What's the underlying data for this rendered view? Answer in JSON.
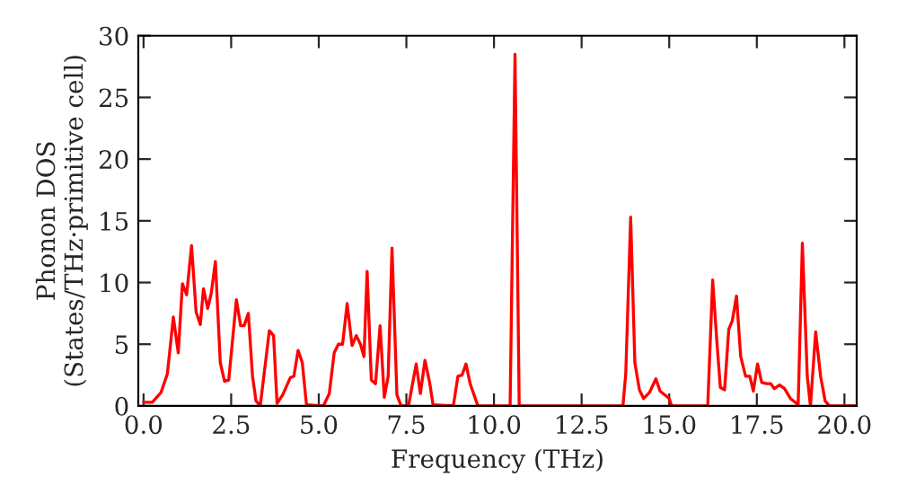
{
  "chart_data": {
    "type": "line",
    "xlabel": "Frequency (THz)",
    "ylabel": "Phonon DOS\n(States/THz·primitive cell)",
    "x": [
      0,
      0.25,
      0.5,
      0.68,
      0.85,
      0.99,
      1.11,
      1.23,
      1.37,
      1.5,
      1.62,
      1.71,
      1.83,
      1.93,
      2.05,
      2.19,
      2.31,
      2.43,
      2.65,
      2.77,
      2.87,
      2.99,
      3.11,
      3.21,
      3.33,
      3.59,
      3.71,
      3.81,
      3.97,
      4.19,
      4.29,
      4.41,
      4.53,
      4.65,
      5.13,
      5.3,
      5.44,
      5.56,
      5.68,
      5.81,
      5.95,
      6.07,
      6.19,
      6.29,
      6.38,
      6.5,
      6.62,
      6.75,
      6.87,
      6.98,
      7.09,
      7.23,
      7.35,
      7.56,
      7.78,
      7.9,
      8.03,
      8.17,
      8.26,
      8.84,
      8.97,
      9.09,
      9.2,
      9.32,
      9.54,
      10.46,
      10.6,
      10.72,
      13.68,
      13.76,
      13.9,
      14.02,
      14.15,
      14.27,
      14.44,
      14.62,
      14.74,
      14.87,
      15.0,
      15.07,
      16.1,
      16.24,
      16.36,
      16.46,
      16.58,
      16.7,
      16.8,
      16.92,
      17.04,
      17.18,
      17.3,
      17.4,
      17.52,
      17.64,
      17.78,
      17.9,
      18.0,
      18.15,
      18.29,
      18.46,
      18.68,
      18.8,
      18.94,
      19.03,
      19.18,
      19.32,
      19.45,
      19.57,
      20.33
    ],
    "series": [
      {
        "color": "#ff0000",
        "values": [
          0.3,
          0.3,
          1.1,
          2.6,
          7.2,
          4.3,
          9.9,
          9.0,
          13.0,
          7.6,
          6.6,
          9.5,
          7.9,
          9.1,
          11.7,
          3.5,
          2.0,
          2.1,
          8.6,
          6.5,
          6.5,
          7.5,
          2.4,
          0.4,
          0,
          6.1,
          5.7,
          0.2,
          0.9,
          2.3,
          2.4,
          4.5,
          3.5,
          0.1,
          0,
          1.0,
          4.3,
          5.0,
          5.0,
          8.3,
          4.9,
          5.7,
          5.0,
          4.0,
          10.9,
          2.1,
          1.8,
          6.5,
          0.7,
          2.4,
          12.8,
          0.9,
          0,
          0,
          3.4,
          1.0,
          3.7,
          1.8,
          0.1,
          0,
          2.4,
          2.5,
          3.4,
          1.8,
          0,
          0,
          28.5,
          0,
          0,
          2.6,
          15.3,
          3.5,
          1.3,
          0.6,
          1.1,
          2.2,
          1.2,
          0.9,
          0.6,
          0,
          0,
          10.2,
          5.2,
          1.5,
          1.3,
          6.2,
          6.9,
          8.9,
          4.0,
          2.4,
          2.4,
          1.2,
          3.4,
          1.9,
          1.8,
          1.8,
          1.4,
          1.7,
          1.4,
          0.6,
          0.1,
          13.2,
          2.4,
          0,
          6.0,
          2.4,
          0.4,
          0,
          0
        ]
      }
    ],
    "xlim": [
      -0.15,
      20.35
    ],
    "ylim": [
      0,
      30
    ],
    "xticks": [
      {
        "value": 0,
        "label": "0.0"
      },
      2.5,
      {
        "value": 5,
        "label": "5.0"
      },
      7.5,
      {
        "value": 10,
        "label": "10.0"
      },
      12.5,
      {
        "value": 15,
        "label": "15.0"
      },
      17.5,
      {
        "value": 20,
        "label": "20.0"
      }
    ],
    "yticks": [
      0,
      5,
      10,
      15,
      20,
      25,
      30
    ],
    "grid": false,
    "legend": false,
    "marker": "none",
    "line_style": "solid"
  }
}
